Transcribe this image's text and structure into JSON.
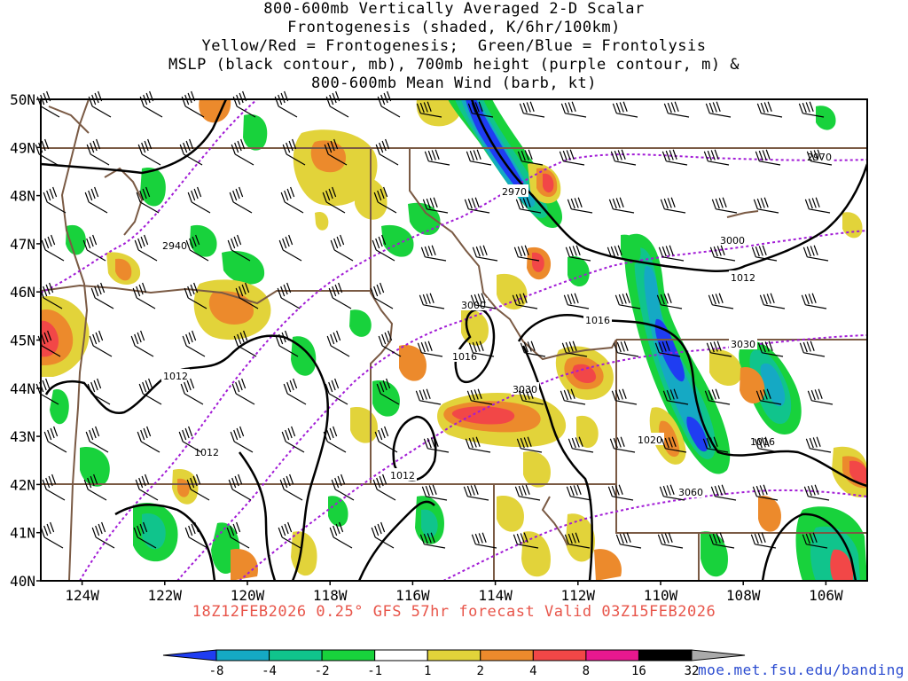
{
  "title_lines": [
    "800-600mb Vertically Averaged 2-D Scalar",
    "Frontogenesis (shaded, K/6hr/100km)",
    "Yellow/Red = Frontogenesis;  Green/Blue = Frontolysis",
    "MSLP (black contour, mb), 700mb height (purple contour, m) &",
    "800-600mb Mean Wind (barb, kt)"
  ],
  "footer": "18Z12FEB2026 0.25° GFS 57hr forecast Valid 03Z15FEB2026",
  "credit": "moe.met.fsu.edu/banding",
  "map": {
    "lon_range": [
      -125,
      -105
    ],
    "lat_range": [
      40,
      50
    ],
    "lon_ticks": [
      "124W",
      "122W",
      "120W",
      "118W",
      "116W",
      "114W",
      "112W",
      "110W",
      "108W",
      "106W"
    ],
    "lat_ticks": [
      "40N",
      "41N",
      "42N",
      "43N",
      "44N",
      "45N",
      "46N",
      "47N",
      "48N",
      "49N",
      "50N"
    ],
    "mslp_labels": [
      "1012",
      "1012",
      "1012",
      "1016",
      "1016",
      "1016",
      "1020",
      "1012"
    ],
    "height_labels": [
      "2940",
      "2970",
      "2970",
      "3000",
      "3000",
      "3030",
      "3030",
      "3060"
    ]
  },
  "colorbar": {
    "labels": [
      "-8",
      "-4",
      "-2",
      "-1",
      "1",
      "2",
      "4",
      "8",
      "16",
      "32"
    ],
    "colors": [
      "#1f3df2",
      "#15a9c4",
      "#10c48c",
      "#18d23c",
      "#ffffff",
      "#e2d33a",
      "#ec8a2c",
      "#f24747",
      "#e8188f",
      "#000000",
      "#aaaaaa"
    ]
  },
  "colors": {
    "mslp": "#000000",
    "height": "#a21cd6",
    "borders": "#7a5a44",
    "barbs": "#000000",
    "footer": "#e8554a",
    "credit": "#2a4bd0"
  }
}
